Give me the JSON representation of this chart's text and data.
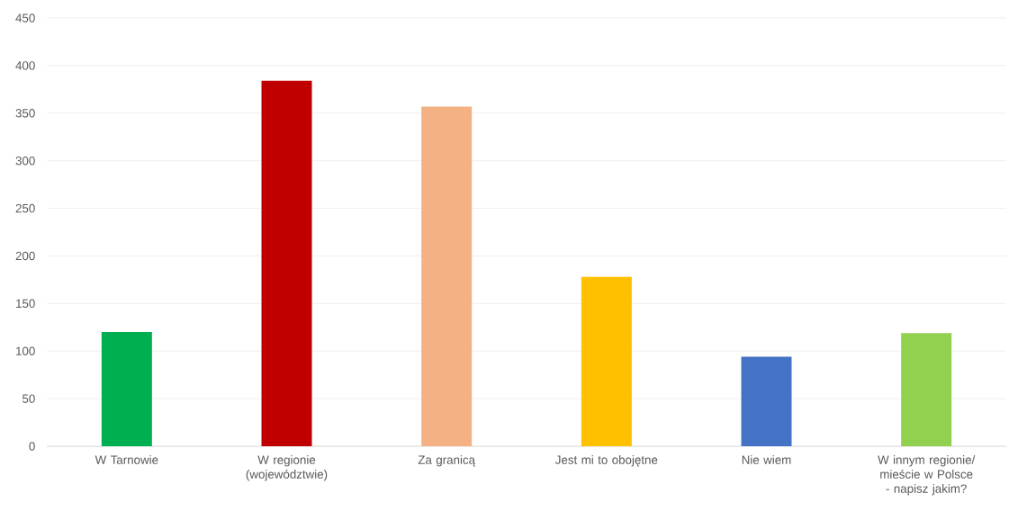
{
  "chart_data": {
    "type": "bar",
    "categories": [
      "W Tarnowie",
      "W regionie (województwie)",
      "Za granicą",
      "Jest mi to obojętne",
      "Nie wiem",
      "W innym regionie/ mieście w Polsce - napisz jakim?"
    ],
    "values": [
      120,
      384,
      357,
      178,
      94,
      119
    ],
    "colors": [
      "#00b050",
      "#c00000",
      "#f4b183",
      "#ffc000",
      "#4472c4",
      "#92d050"
    ],
    "ylim": [
      0,
      450
    ],
    "yticks": [
      0,
      50,
      100,
      150,
      200,
      250,
      300,
      350,
      400,
      450
    ],
    "grid": "y"
  }
}
